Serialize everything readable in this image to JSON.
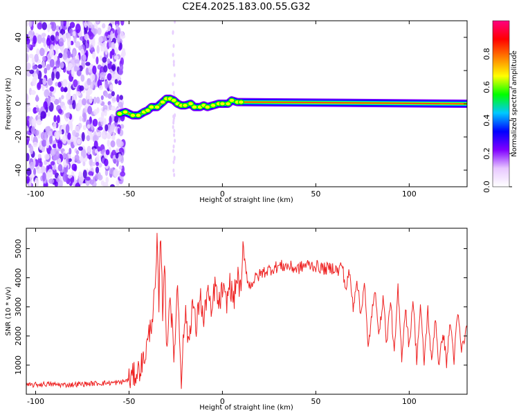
{
  "title": "C2E4.2025.183.00.55.G32",
  "chart_data": [
    {
      "type": "heatmap",
      "xlabel": "Height of straight line (km)",
      "ylabel": "Frequency (Hz)",
      "xlim": [
        -105,
        131
      ],
      "ylim": [
        -50,
        50
      ],
      "xticks": [
        -100,
        -50,
        0,
        50,
        100
      ],
      "yticks": [
        -40,
        -20,
        0,
        20,
        40
      ],
      "colorbar": {
        "label": "Normalized spectral amplitude",
        "range": [
          0,
          1
        ],
        "ticks": [
          0.0,
          0.2,
          0.4,
          0.6,
          0.8
        ],
        "colormap": [
          "#ffffff",
          "#e8c8ff",
          "#8000ff",
          "#0000ff",
          "#00c8ff",
          "#00ff00",
          "#ffff00",
          "#ff8000",
          "#ff0000",
          "#ff0080"
        ]
      },
      "signal_trace": {
        "x": [
          -55,
          -52,
          -48,
          -45,
          -42,
          -40,
          -38,
          -35,
          -32,
          -30,
          -28,
          -26,
          -24,
          -22,
          -20,
          -17,
          -15,
          -12,
          -10,
          -8,
          -5,
          -2,
          0,
          3,
          5,
          8,
          10,
          131
        ],
        "frequency": [
          -6,
          -5,
          -7,
          -7,
          -5,
          -4,
          -2,
          -2,
          1,
          3,
          3,
          2,
          0,
          -1,
          -1,
          0,
          -2,
          -2,
          -1,
          -2,
          -1,
          0,
          0,
          0,
          2,
          1,
          1,
          0
        ]
      },
      "noise_region_x": [
        -105,
        -55
      ]
    },
    {
      "type": "line",
      "xlabel": "Height of straight line (km)",
      "ylabel": "SNR (10 * v/v)",
      "xlim": [
        -105,
        131
      ],
      "ylim": [
        0,
        5700
      ],
      "xticks": [
        -100,
        -50,
        0,
        50,
        100
      ],
      "yticks": [
        1000,
        2000,
        3000,
        4000,
        5000
      ],
      "color": "#ee2020",
      "series": [
        {
          "x": [
            -105,
            -95,
            -85,
            -75,
            -65,
            -55,
            -50,
            -45,
            -42,
            -40,
            -38,
            -36,
            -35,
            -34,
            -33,
            -32,
            -31,
            -30,
            -28,
            -26,
            -24,
            -22,
            -20,
            -18,
            -16,
            -14,
            -12,
            -10,
            -8,
            -6,
            -4,
            -2,
            0,
            2,
            4,
            6,
            8,
            10,
            11,
            14,
            18,
            22,
            26,
            30,
            35,
            40,
            45,
            50,
            55,
            60,
            62,
            64,
            66,
            68,
            70,
            72,
            74,
            76,
            78,
            80,
            82,
            84,
            86,
            88,
            90,
            92,
            94,
            96,
            98,
            100,
            102,
            104,
            106,
            108,
            110,
            112,
            114,
            116,
            118,
            120,
            122,
            124,
            126,
            128,
            131
          ],
          "y": [
            300,
            350,
            320,
            350,
            380,
            400,
            500,
            800,
            1200,
            1800,
            2500,
            3500,
            5100,
            3000,
            5700,
            2800,
            4800,
            1500,
            3500,
            1200,
            3800,
            600,
            2800,
            1800,
            3200,
            2200,
            3500,
            2400,
            3700,
            2600,
            3800,
            3000,
            3600,
            3100,
            3800,
            3200,
            4100,
            3400,
            5100,
            3700,
            4000,
            4200,
            4300,
            4400,
            4400,
            4300,
            4450,
            4400,
            4300,
            4350,
            4200,
            4500,
            3600,
            4200,
            3000,
            4000,
            2700,
            3900,
            1500,
            2800,
            3500,
            2000,
            3400,
            1700,
            3300,
            1300,
            3600,
            1300,
            3000,
            1600,
            3300,
            1200,
            3000,
            1100,
            2900,
            1000,
            2700,
            900,
            2200,
            1100,
            2500,
            1200,
            2800,
            1500,
            2300
          ]
        }
      ]
    }
  ]
}
